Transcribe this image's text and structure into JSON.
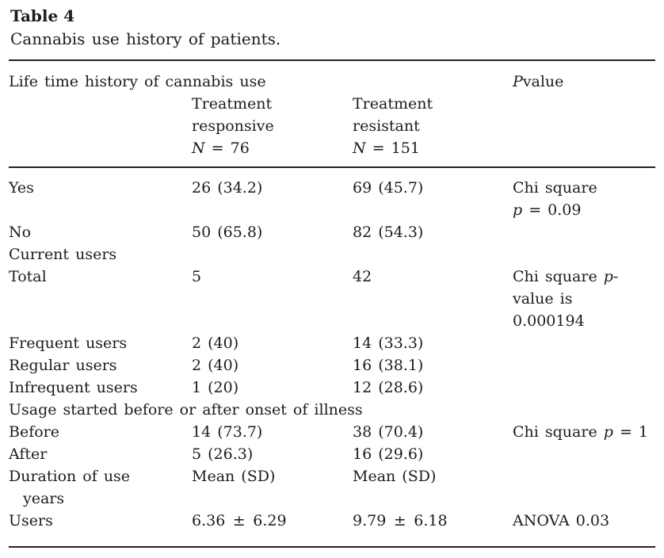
{
  "doc": {
    "title": "Table 4",
    "caption": "Cannabis use history of patients."
  },
  "header": {
    "lifetime_label": "Life time history of cannabis use",
    "pvalue": [
      {
        "t": "P",
        "i": true
      },
      {
        "t": "value"
      }
    ],
    "responsive": [
      {
        "t": "Treatment"
      },
      {
        "br": true
      },
      {
        "t": "responsive"
      },
      {
        "br": true
      },
      {
        "t": "N",
        "i": true
      },
      {
        "t": " = 76"
      }
    ],
    "resistant": [
      {
        "t": "Treatment"
      },
      {
        "br": true
      },
      {
        "t": "resistant"
      },
      {
        "br": true
      },
      {
        "t": "N",
        "i": true
      },
      {
        "t": " = 151"
      }
    ]
  },
  "rows": [
    {
      "label": [
        {
          "t": "Yes"
        }
      ],
      "responsive": [
        {
          "t": "26 (34.2)"
        }
      ],
      "resistant": [
        {
          "t": "69 (45.7)"
        }
      ],
      "pvalue": [
        {
          "t": "Chi square"
        },
        {
          "br": true
        },
        {
          "t": "p",
          "i": true
        },
        {
          "t": " = 0.09"
        }
      ]
    },
    {
      "label": [
        {
          "t": "No"
        }
      ],
      "responsive": [
        {
          "t": "50 (65.8)"
        }
      ],
      "resistant": [
        {
          "t": "82 (54.3)"
        }
      ]
    },
    {
      "label": [
        {
          "t": "Current users"
        }
      ]
    },
    {
      "label": [
        {
          "t": "Total"
        }
      ],
      "responsive": [
        {
          "t": "5"
        }
      ],
      "resistant": [
        {
          "t": "42"
        }
      ],
      "pvalue": [
        {
          "t": "Chi square "
        },
        {
          "t": "p",
          "i": true
        },
        {
          "t": "-"
        },
        {
          "br": true
        },
        {
          "t": "value is"
        },
        {
          "br": true
        },
        {
          "t": "0.000194"
        }
      ]
    },
    {
      "label": [
        {
          "t": "Frequent users"
        }
      ],
      "responsive": [
        {
          "t": "2 (40)"
        }
      ],
      "resistant": [
        {
          "t": "14 (33.3)"
        }
      ]
    },
    {
      "label": [
        {
          "t": "Regular users"
        }
      ],
      "responsive": [
        {
          "t": "2 (40)"
        }
      ],
      "resistant": [
        {
          "t": "16 (38.1)"
        }
      ]
    },
    {
      "label": [
        {
          "t": "Infrequent users"
        }
      ],
      "responsive": [
        {
          "t": "1 (20)"
        }
      ],
      "resistant": [
        {
          "t": "12 (28.6)"
        }
      ]
    },
    {
      "label": [
        {
          "t": "Usage started before or after onset of illness"
        }
      ],
      "span": true
    },
    {
      "label": [
        {
          "t": "Before"
        }
      ],
      "responsive": [
        {
          "t": "14 (73.7)"
        }
      ],
      "resistant": [
        {
          "t": "38 (70.4)"
        }
      ],
      "pvalue": [
        {
          "t": "Chi square "
        },
        {
          "t": "p",
          "i": true
        },
        {
          "t": " = 1"
        }
      ]
    },
    {
      "label": [
        {
          "t": "After"
        }
      ],
      "responsive": [
        {
          "t": "5 (26.3)"
        }
      ],
      "resistant": [
        {
          "t": "16 (29.6)"
        }
      ]
    },
    {
      "label": [
        {
          "t": "Duration of use"
        },
        {
          "br": true
        },
        {
          "t": "years",
          "ind": true
        }
      ],
      "responsive": [
        {
          "t": "Mean (SD)"
        }
      ],
      "resistant": [
        {
          "t": "Mean (SD)"
        }
      ]
    },
    {
      "label": [
        {
          "t": "Users"
        }
      ],
      "responsive": [
        {
          "t": "6.36 ± 6.29"
        }
      ],
      "resistant": [
        {
          "t": "9.79 ± 6.18"
        }
      ],
      "pvalue": [
        {
          "t": "ANOVA 0.03"
        }
      ]
    }
  ],
  "colors": {
    "text": "#1c1c1c",
    "rule": "#222222",
    "background": "#ffffff"
  }
}
